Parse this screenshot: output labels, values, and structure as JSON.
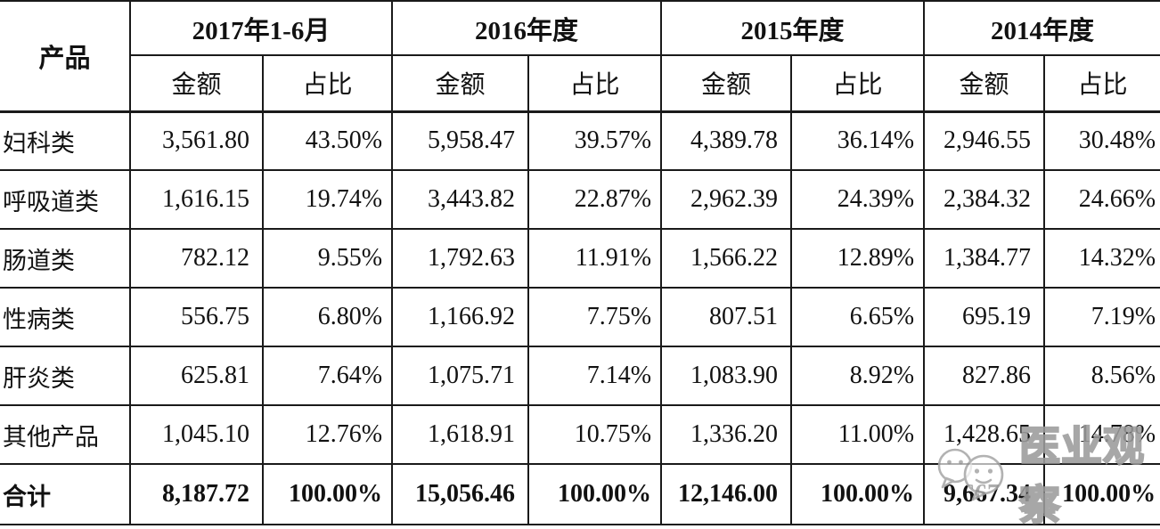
{
  "table": {
    "product_col_header": "产品",
    "period_groups": [
      {
        "label": "2017年1-6月"
      },
      {
        "label": "2016年度"
      },
      {
        "label": "2015年度"
      },
      {
        "label": "2014年度"
      }
    ],
    "sub_headers": {
      "amount": "金额",
      "share": "占比"
    },
    "rows": [
      {
        "product": "妇科类",
        "cells": [
          "3,561.80",
          "43.50%",
          "5,958.47",
          "39.57%",
          "4,389.78",
          "36.14%",
          "2,946.55",
          "30.48%"
        ]
      },
      {
        "product": "呼吸道类",
        "cells": [
          "1,616.15",
          "19.74%",
          "3,443.82",
          "22.87%",
          "2,962.39",
          "24.39%",
          "2,384.32",
          "24.66%"
        ]
      },
      {
        "product": "肠道类",
        "cells": [
          "782.12",
          "9.55%",
          "1,792.63",
          "11.91%",
          "1,566.22",
          "12.89%",
          "1,384.77",
          "14.32%"
        ]
      },
      {
        "product": "性病类",
        "cells": [
          "556.75",
          "6.80%",
          "1,166.92",
          "7.75%",
          "807.51",
          "6.65%",
          "695.19",
          "7.19%"
        ]
      },
      {
        "product": "肝炎类",
        "cells": [
          "625.81",
          "7.64%",
          "1,075.71",
          "7.14%",
          "1,083.90",
          "8.92%",
          "827.86",
          "8.56%"
        ]
      },
      {
        "product": "其他产品",
        "cells": [
          "1,045.10",
          "12.76%",
          "1,618.91",
          "10.75%",
          "1,336.20",
          "11.00%",
          "1,428.65",
          "14.78%"
        ]
      }
    ],
    "total_row": {
      "product": "合计",
      "cells": [
        "8,187.72",
        "100.00%",
        "15,056.46",
        "100.00%",
        "12,146.00",
        "100.00%",
        "9,667.34",
        "100.00%"
      ]
    }
  },
  "watermark": {
    "text": "医业观察"
  },
  "colors": {
    "background": "#ffffff",
    "text": "#111111",
    "border": "#1a1a1a",
    "watermark": "#9c9c9c"
  }
}
